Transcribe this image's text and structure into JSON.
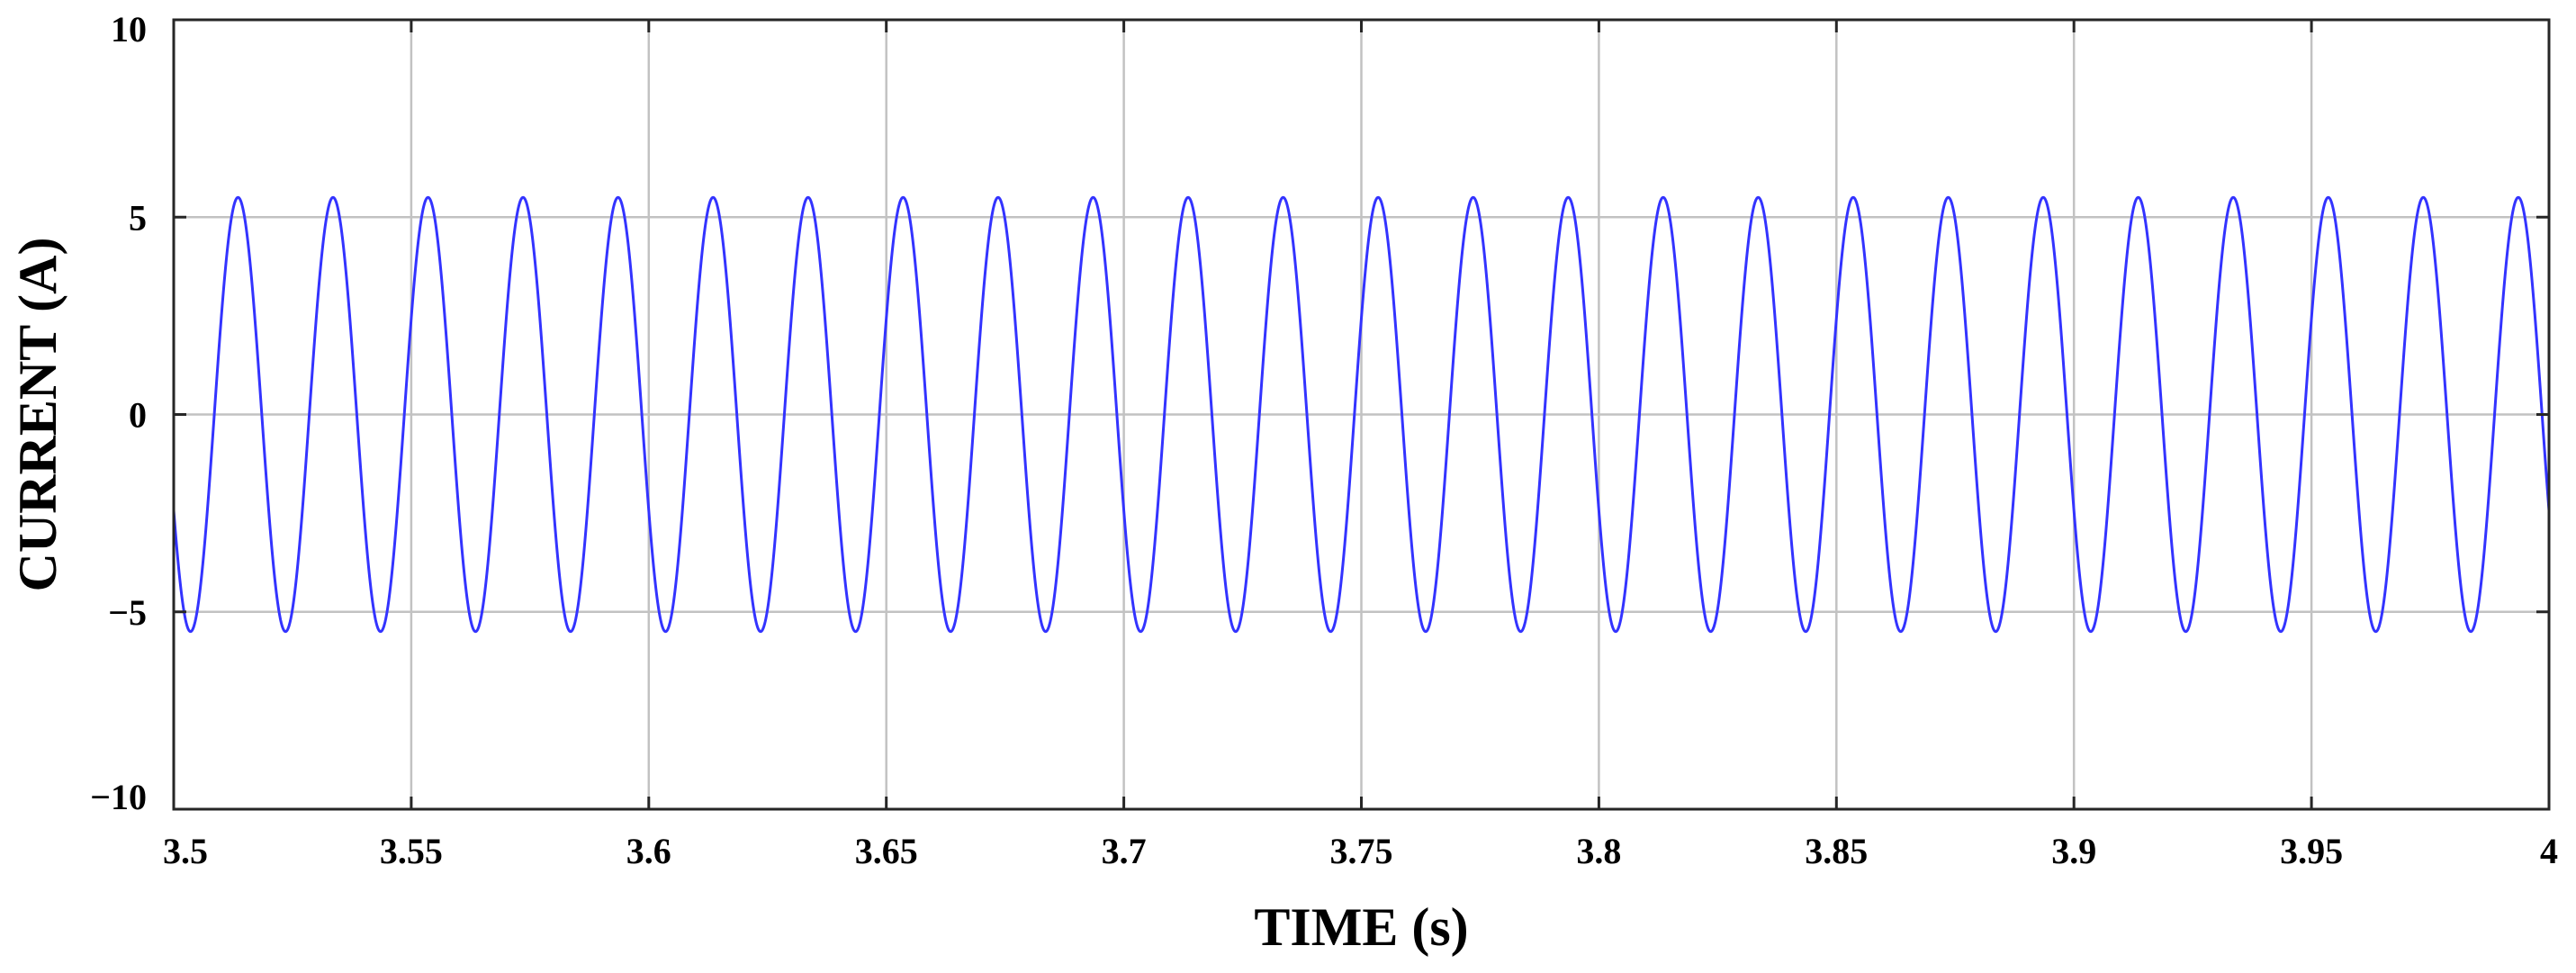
{
  "chart_data": {
    "type": "line",
    "title": "",
    "xlabel": "TIME (s)",
    "ylabel": "CURRENT (A)",
    "xlim": [
      3.5,
      4.0
    ],
    "ylim": [
      -10,
      10
    ],
    "grid": true,
    "xticks": [
      3.5,
      3.55,
      3.6,
      3.65,
      3.7,
      3.75,
      3.8,
      3.85,
      3.9,
      3.95,
      4.0
    ],
    "xtick_labels": [
      "3.5",
      "3.55",
      "3.6",
      "3.65",
      "3.7",
      "3.75",
      "3.8",
      "3.85",
      "3.9",
      "3.95",
      "4"
    ],
    "yticks": [
      -10,
      -5,
      0,
      5,
      10
    ],
    "ytick_labels": [
      "−10",
      "−5",
      "0",
      "5",
      "10"
    ],
    "series": [
      {
        "name": "current",
        "color": "#3333ff",
        "function": "sine",
        "amplitude": 5.5,
        "frequency_hz": 50,
        "phase_rad": 3.6,
        "x_start": 3.5,
        "x_end": 4.0,
        "samples": 4000
      }
    ]
  }
}
